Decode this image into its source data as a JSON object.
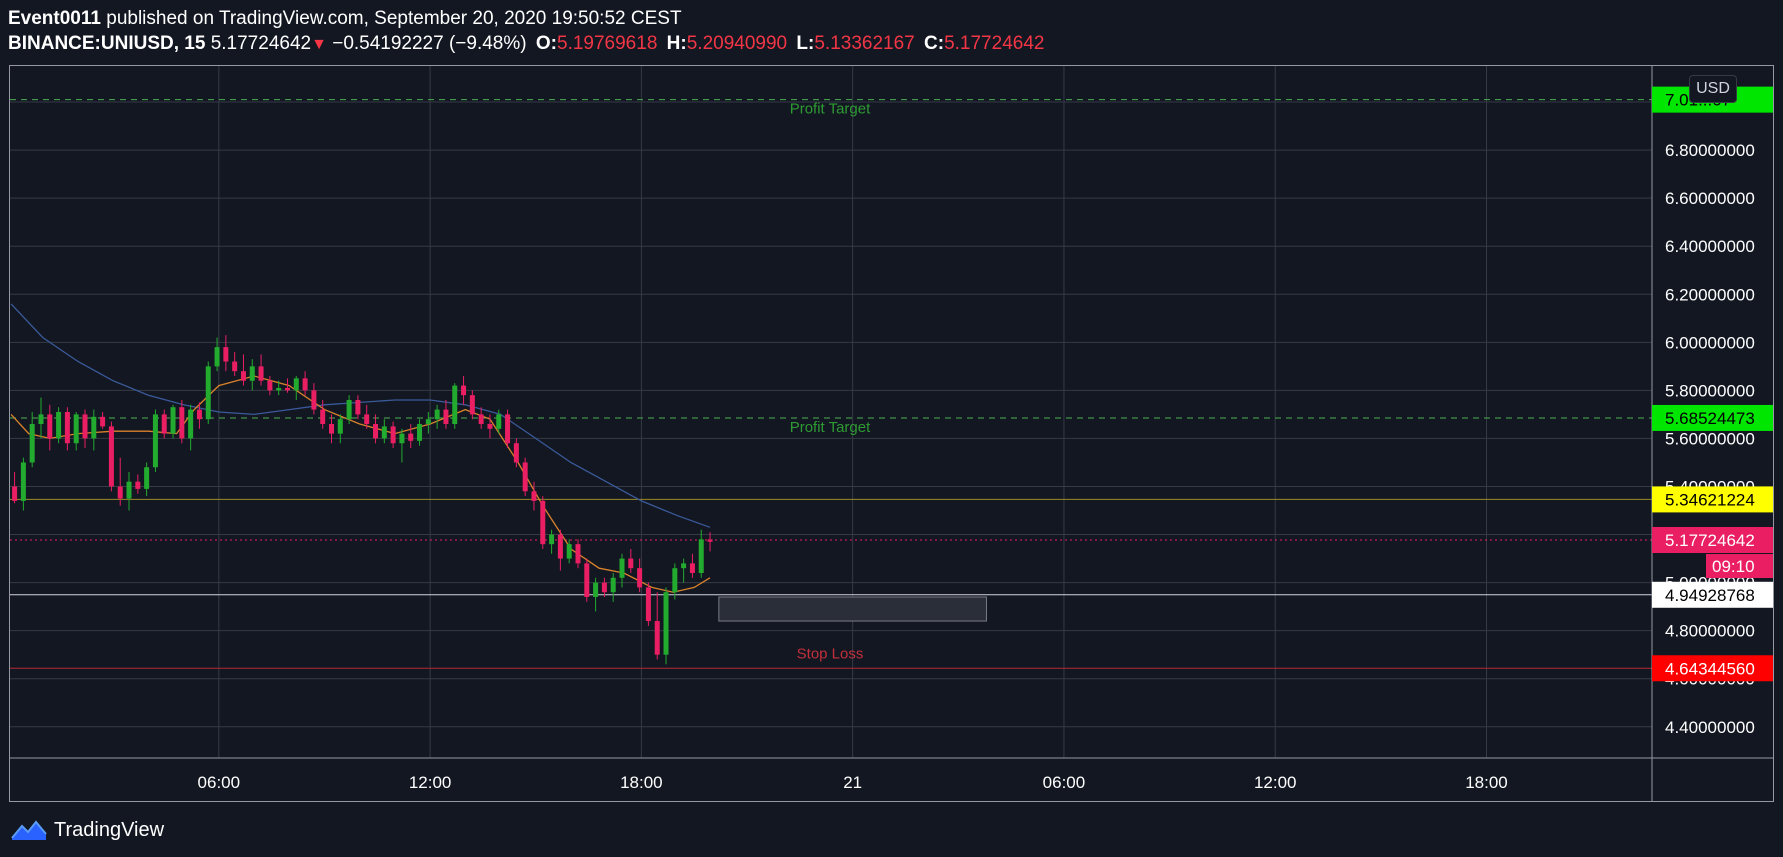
{
  "header": {
    "author": "Event0011",
    "published_text": "published on TradingView.com, September 20, 2020 19:50:52 CEST",
    "symbol": "BINANCE:UNIUSD, 15",
    "last_price": "5.17724642",
    "change": "−0.54192227 (−9.48%)",
    "o_label": "O:",
    "o_value": "5.19769618",
    "h_label": "H:",
    "h_value": "5.20940990",
    "l_label": "L:",
    "l_value": "5.13362167",
    "c_label": "C:",
    "c_value": "5.17724642"
  },
  "currency_badge": "USD",
  "footer": {
    "brand": "TradingView"
  },
  "colors": {
    "background": "#131722",
    "grid": "#363a45",
    "up_candle": "#22ab2e",
    "down_candle": "#e91e63",
    "profit_line": "#4caf50",
    "profit_label": "#00e600",
    "stop_line": "#e53935",
    "stop_label": "#ff0000",
    "price_label": "#e91e63",
    "level_yellow": "#ffff00",
    "ema_fast": "#f28b2b",
    "ema_slow": "#2962ff"
  },
  "chart_data": {
    "type": "candlestick",
    "interval": "15",
    "y_axis": {
      "range": [
        4.27,
        7.15
      ],
      "ticks": [
        "4.40000000",
        "4.60000000",
        "4.80000000",
        "5.00000000",
        "5.20000000",
        "5.40000000",
        "5.60000000",
        "5.80000000",
        "6.00000000",
        "6.20000000",
        "6.40000000",
        "6.60000000",
        "6.80000000",
        "7.00000000"
      ]
    },
    "x_axis": {
      "ticks": [
        {
          "label": "06:00",
          "hours": 6
        },
        {
          "label": "12:00",
          "hours": 12
        },
        {
          "label": "18:00",
          "hours": 18
        },
        {
          "label": "21",
          "hours": 24
        },
        {
          "label": "06:00",
          "hours": 30
        },
        {
          "label": "12:00",
          "hours": 36
        },
        {
          "label": "18:00",
          "hours": 42
        }
      ],
      "range_hours": [
        0.07,
        46.7
      ]
    },
    "grid": true,
    "candles": [
      [
        0.2,
        5.4,
        5.46,
        5.33,
        5.34
      ],
      [
        0.45,
        5.34,
        5.52,
        5.3,
        5.5
      ],
      [
        0.7,
        5.5,
        5.71,
        5.48,
        5.66
      ],
      [
        0.95,
        5.66,
        5.77,
        5.6,
        5.7
      ],
      [
        1.2,
        5.7,
        5.74,
        5.55,
        5.6
      ],
      [
        1.45,
        5.6,
        5.73,
        5.58,
        5.71
      ],
      [
        1.7,
        5.71,
        5.73,
        5.55,
        5.58
      ],
      [
        1.95,
        5.58,
        5.71,
        5.55,
        5.7
      ],
      [
        2.2,
        5.7,
        5.72,
        5.56,
        5.6
      ],
      [
        2.45,
        5.6,
        5.72,
        5.55,
        5.69
      ],
      [
        2.7,
        5.69,
        5.71,
        5.64,
        5.65
      ],
      [
        2.95,
        5.65,
        5.67,
        5.38,
        5.4
      ],
      [
        3.2,
        5.4,
        5.52,
        5.32,
        5.35
      ],
      [
        3.45,
        5.35,
        5.46,
        5.3,
        5.42
      ],
      [
        3.7,
        5.42,
        5.45,
        5.37,
        5.39
      ],
      [
        3.95,
        5.39,
        5.5,
        5.36,
        5.48
      ],
      [
        4.2,
        5.48,
        5.72,
        5.46,
        5.7
      ],
      [
        4.45,
        5.7,
        5.72,
        5.6,
        5.62
      ],
      [
        4.7,
        5.62,
        5.74,
        5.6,
        5.73
      ],
      [
        4.95,
        5.73,
        5.76,
        5.58,
        5.6
      ],
      [
        5.2,
        5.6,
        5.74,
        5.55,
        5.72
      ],
      [
        5.45,
        5.72,
        5.75,
        5.64,
        5.68
      ],
      [
        5.7,
        5.68,
        5.92,
        5.66,
        5.9
      ],
      [
        5.95,
        5.9,
        6.02,
        5.88,
        5.98
      ],
      [
        6.2,
        5.98,
        6.03,
        5.88,
        5.92
      ],
      [
        6.45,
        5.92,
        5.96,
        5.86,
        5.88
      ],
      [
        6.7,
        5.88,
        5.95,
        5.82,
        5.84
      ],
      [
        6.95,
        5.84,
        5.93,
        5.8,
        5.9
      ],
      [
        7.2,
        5.9,
        5.95,
        5.82,
        5.84
      ],
      [
        7.45,
        5.84,
        5.86,
        5.78,
        5.8
      ],
      [
        7.7,
        5.8,
        5.84,
        5.78,
        5.81
      ],
      [
        7.95,
        5.81,
        5.85,
        5.79,
        5.8
      ],
      [
        8.2,
        5.8,
        5.86,
        5.76,
        5.85
      ],
      [
        8.45,
        5.85,
        5.88,
        5.78,
        5.8
      ],
      [
        8.7,
        5.8,
        5.83,
        5.7,
        5.72
      ],
      [
        8.95,
        5.72,
        5.76,
        5.64,
        5.66
      ],
      [
        9.2,
        5.66,
        5.7,
        5.58,
        5.62
      ],
      [
        9.45,
        5.62,
        5.7,
        5.58,
        5.68
      ],
      [
        9.7,
        5.68,
        5.78,
        5.66,
        5.76
      ],
      [
        9.95,
        5.76,
        5.78,
        5.68,
        5.7
      ],
      [
        10.2,
        5.7,
        5.74,
        5.64,
        5.66
      ],
      [
        10.45,
        5.66,
        5.7,
        5.58,
        5.6
      ],
      [
        10.7,
        5.6,
        5.68,
        5.58,
        5.65
      ],
      [
        10.95,
        5.65,
        5.67,
        5.56,
        5.58
      ],
      [
        11.2,
        5.58,
        5.64,
        5.5,
        5.62
      ],
      [
        11.45,
        5.62,
        5.66,
        5.56,
        5.59
      ],
      [
        11.7,
        5.59,
        5.68,
        5.57,
        5.66
      ],
      [
        11.95,
        5.66,
        5.71,
        5.62,
        5.68
      ],
      [
        12.2,
        5.68,
        5.74,
        5.64,
        5.72
      ],
      [
        12.45,
        5.72,
        5.76,
        5.64,
        5.66
      ],
      [
        12.7,
        5.66,
        5.83,
        5.64,
        5.82
      ],
      [
        12.95,
        5.82,
        5.86,
        5.74,
        5.78
      ],
      [
        13.2,
        5.78,
        5.8,
        5.68,
        5.7
      ],
      [
        13.45,
        5.7,
        5.73,
        5.64,
        5.66
      ],
      [
        13.7,
        5.66,
        5.7,
        5.6,
        5.64
      ],
      [
        13.95,
        5.64,
        5.72,
        5.62,
        5.7
      ],
      [
        14.2,
        5.7,
        5.72,
        5.56,
        5.58
      ],
      [
        14.45,
        5.58,
        5.6,
        5.48,
        5.5
      ],
      [
        14.7,
        5.5,
        5.52,
        5.36,
        5.38
      ],
      [
        14.95,
        5.38,
        5.42,
        5.3,
        5.34
      ],
      [
        15.2,
        5.34,
        5.36,
        5.14,
        5.16
      ],
      [
        15.45,
        5.16,
        5.22,
        5.12,
        5.2
      ],
      [
        15.7,
        5.2,
        5.22,
        5.05,
        5.1
      ],
      [
        15.95,
        5.1,
        5.18,
        5.08,
        5.16
      ],
      [
        16.2,
        5.16,
        5.18,
        5.06,
        5.08
      ],
      [
        16.45,
        5.08,
        5.1,
        4.92,
        4.94
      ],
      [
        16.7,
        4.94,
        5.02,
        4.88,
        5.0
      ],
      [
        16.95,
        5.0,
        5.02,
        4.94,
        4.96
      ],
      [
        17.2,
        4.96,
        5.04,
        4.92,
        5.02
      ],
      [
        17.45,
        5.02,
        5.12,
        4.98,
        5.1
      ],
      [
        17.7,
        5.1,
        5.14,
        5.04,
        5.06
      ],
      [
        17.95,
        5.06,
        5.1,
        4.96,
        4.98
      ],
      [
        18.2,
        4.98,
        5.0,
        4.82,
        4.84
      ],
      [
        18.45,
        4.84,
        4.96,
        4.68,
        4.7
      ],
      [
        18.7,
        4.7,
        4.98,
        4.66,
        4.96
      ],
      [
        18.95,
        4.96,
        5.08,
        4.93,
        5.06
      ],
      [
        19.2,
        5.06,
        5.1,
        5.0,
        5.08
      ],
      [
        19.45,
        5.08,
        5.12,
        5.02,
        5.04
      ],
      [
        19.7,
        5.04,
        5.22,
        5.02,
        5.18
      ],
      [
        19.95,
        5.18,
        5.21,
        5.13,
        5.17
      ]
    ],
    "indicators": {
      "ema_fast": [
        [
          0.1,
          5.7
        ],
        [
          0.6,
          5.62
        ],
        [
          1.2,
          5.6
        ],
        [
          2.0,
          5.62
        ],
        [
          3.0,
          5.63
        ],
        [
          4.0,
          5.63
        ],
        [
          4.8,
          5.62
        ],
        [
          5.3,
          5.72
        ],
        [
          6.0,
          5.82
        ],
        [
          7.0,
          5.86
        ],
        [
          8.0,
          5.82
        ],
        [
          9.0,
          5.72
        ],
        [
          10.0,
          5.66
        ],
        [
          11.0,
          5.62
        ],
        [
          12.0,
          5.66
        ],
        [
          13.0,
          5.72
        ],
        [
          13.7,
          5.68
        ],
        [
          14.5,
          5.5
        ],
        [
          15.2,
          5.32
        ],
        [
          16.0,
          5.14
        ],
        [
          16.8,
          5.06
        ],
        [
          17.5,
          5.04
        ],
        [
          18.3,
          4.98
        ],
        [
          18.9,
          4.96
        ],
        [
          19.5,
          4.98
        ],
        [
          19.95,
          5.02
        ]
      ],
      "ema_slow": [
        [
          0.1,
          6.16
        ],
        [
          1.0,
          6.02
        ],
        [
          2.0,
          5.92
        ],
        [
          3.0,
          5.84
        ],
        [
          4.0,
          5.78
        ],
        [
          5.0,
          5.74
        ],
        [
          6.0,
          5.71
        ],
        [
          7.0,
          5.7
        ],
        [
          8.0,
          5.72
        ],
        [
          9.0,
          5.74
        ],
        [
          10.0,
          5.75
        ],
        [
          11.0,
          5.76
        ],
        [
          12.0,
          5.76
        ],
        [
          13.0,
          5.74
        ],
        [
          14.0,
          5.7
        ],
        [
          15.0,
          5.6
        ],
        [
          16.0,
          5.5
        ],
        [
          17.0,
          5.42
        ],
        [
          18.0,
          5.34
        ],
        [
          19.0,
          5.28
        ],
        [
          19.95,
          5.23
        ]
      ]
    },
    "levels": [
      {
        "name": "Profit Target",
        "value": 7.01,
        "axis_label": "7.01...07",
        "style": "dashed",
        "kind": "profit"
      },
      {
        "name": "Profit Target",
        "value": 5.68524473,
        "axis_label": "5.68524473",
        "style": "dashed",
        "kind": "profit"
      },
      {
        "name": "",
        "value": 5.34621224,
        "axis_label": "5.34621224",
        "style": "solid",
        "kind": "yellow"
      },
      {
        "name": "",
        "value": 5.17724642,
        "axis_label": "5.17724642",
        "style": "dotted",
        "kind": "price"
      },
      {
        "name": "",
        "value": 4.94928768,
        "axis_label": "4.94928768",
        "style": "solid",
        "kind": "white"
      },
      {
        "name": "Stop Loss",
        "value": 4.6434456,
        "axis_label": "4.64344560",
        "style": "solid",
        "kind": "stop"
      }
    ],
    "countdown": "09:10",
    "zone": {
      "x_hours": [
        20.2,
        27.8
      ],
      "y": [
        4.84,
        4.94
      ]
    }
  }
}
